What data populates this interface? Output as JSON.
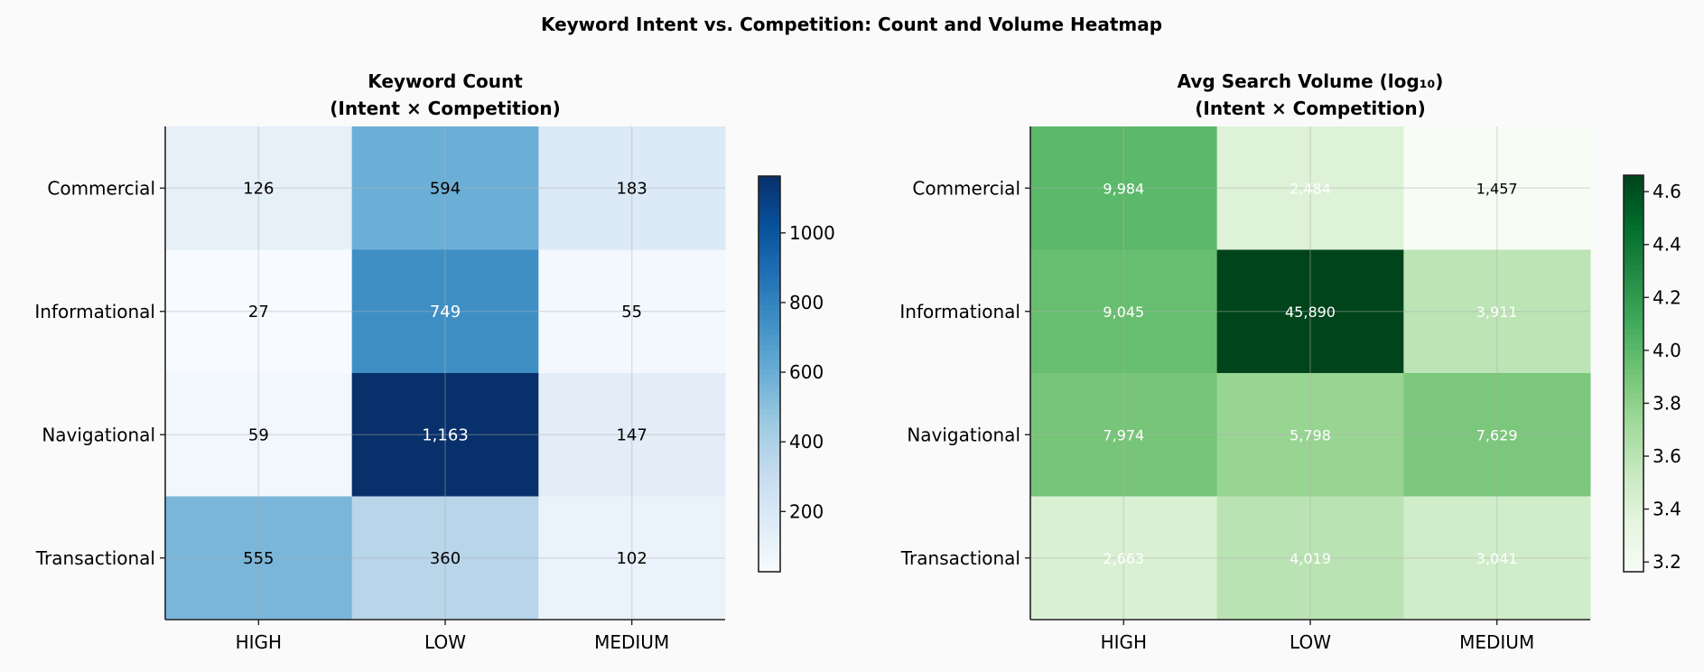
{
  "title": "Keyword Intent vs. Competition: Count and Volume Heatmap",
  "chart_data": [
    {
      "type": "heatmap",
      "title_line1": "Keyword Count",
      "title_line2": "(Intent × Competition)",
      "rows": [
        "Commercial",
        "Informational",
        "Navigational",
        "Transactional"
      ],
      "cols": [
        "HIGH",
        "LOW",
        "MEDIUM"
      ],
      "values": [
        [
          126,
          594,
          183
        ],
        [
          27,
          749,
          55
        ],
        [
          59,
          1163,
          147
        ],
        [
          555,
          360,
          102
        ]
      ],
      "labels": [
        [
          "126",
          "594",
          "183"
        ],
        [
          "27",
          "749",
          "55"
        ],
        [
          "59",
          "1,163",
          "147"
        ],
        [
          "555",
          "360",
          "102"
        ]
      ],
      "colormap": "Blues",
      "scale": "linear",
      "colorbar_range": [
        27,
        1163
      ],
      "colorbar_ticks": [
        200,
        400,
        600,
        800,
        1000
      ],
      "colorbar_tick_labels": [
        "200",
        "400",
        "600",
        "800",
        "1000"
      ]
    },
    {
      "type": "heatmap",
      "title_line1": "Avg Search Volume (log₁₀)",
      "title_line2": "(Intent × Competition)",
      "rows": [
        "Commercial",
        "Informational",
        "Navigational",
        "Transactional"
      ],
      "cols": [
        "HIGH",
        "LOW",
        "MEDIUM"
      ],
      "values": [
        [
          9984,
          2484,
          1457
        ],
        [
          9045,
          45890,
          3911
        ],
        [
          7974,
          5798,
          7629
        ],
        [
          2663,
          4019,
          3041
        ]
      ],
      "labels": [
        [
          "9,984",
          "2,484",
          "1,457"
        ],
        [
          "9,045",
          "45,890",
          "3,911"
        ],
        [
          "7,974",
          "5,798",
          "7,629"
        ],
        [
          "2,663",
          "4,019",
          "3,041"
        ]
      ],
      "colormap": "Greens",
      "scale": "log10",
      "colorbar_range": [
        3.163,
        4.662
      ],
      "colorbar_ticks": [
        3.2,
        3.4,
        3.6,
        3.8,
        4.0,
        4.2,
        4.4,
        4.6
      ],
      "colorbar_tick_labels": [
        "3.2",
        "3.4",
        "3.6",
        "3.8",
        "4.0",
        "4.2",
        "4.4",
        "4.6"
      ]
    }
  ]
}
